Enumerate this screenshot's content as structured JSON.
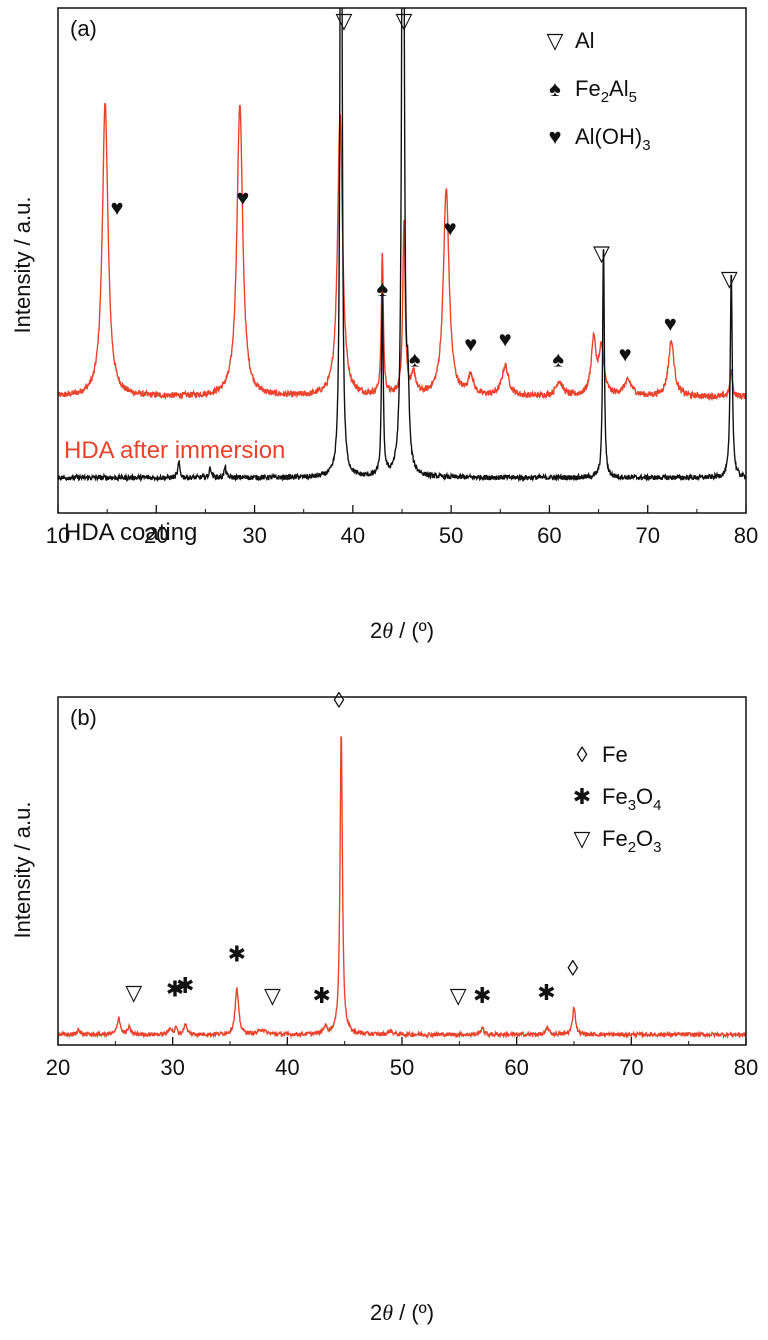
{
  "chart_data": [
    {
      "panel_label": "(a)",
      "type": "line",
      "xlabel_prefix": "2",
      "xlabel_symbol": "θ",
      "xlabel_suffix": " / (º)",
      "ylabel": "Intensity / a.u.",
      "xlim": [
        10,
        80
      ],
      "xticks": [
        10,
        20,
        30,
        40,
        50,
        60,
        70,
        80
      ],
      "ylim": [
        0,
        100
      ],
      "grid": false,
      "legend": {
        "position": "top-right",
        "items": [
          {
            "marker": "open-triangle-down",
            "symbol": "▽",
            "base": "Al",
            "subs": []
          },
          {
            "marker": "spade",
            "symbol": "♠",
            "base": "Fe2Al5",
            "parts": [
              [
                "Fe",
                ""
              ],
              [
                "2",
                "sub"
              ],
              [
                "Al",
                ""
              ],
              [
                "5",
                "sub"
              ]
            ]
          },
          {
            "marker": "heart",
            "symbol": "♥",
            "base": "Al(OH)3",
            "parts": [
              [
                "Al(OH)",
                ""
              ],
              [
                "3",
                "sub"
              ]
            ]
          }
        ]
      },
      "series": [
        {
          "name": "HDA after immersion",
          "color": "#e8432c",
          "baseline": 23,
          "noise": 0.6,
          "peaks": [
            {
              "x": 14.8,
              "y": 58,
              "w": 0.35
            },
            {
              "x": 28.5,
              "y": 58,
              "w": 0.35
            },
            {
              "x": 38.7,
              "y": 56,
              "w": 0.3
            },
            {
              "x": 43.0,
              "y": 28,
              "w": 0.12
            },
            {
              "x": 45.2,
              "y": 34,
              "w": 0.15
            },
            {
              "x": 46.2,
              "y": 4,
              "w": 0.25
            },
            {
              "x": 49.5,
              "y": 41,
              "w": 0.35
            },
            {
              "x": 52.0,
              "y": 4,
              "w": 0.3
            },
            {
              "x": 55.5,
              "y": 6,
              "w": 0.4
            },
            {
              "x": 61.0,
              "y": 3,
              "w": 0.4
            },
            {
              "x": 64.5,
              "y": 11,
              "w": 0.3
            },
            {
              "x": 65.3,
              "y": 9,
              "w": 0.3
            },
            {
              "x": 68.0,
              "y": 3,
              "w": 0.5
            },
            {
              "x": 72.4,
              "y": 11,
              "w": 0.35
            },
            {
              "x": 78.5,
              "y": 5,
              "w": 0.15
            }
          ]
        },
        {
          "name": "HDA coating",
          "color": "#111111",
          "baseline": 7,
          "noise": 0.5,
          "peaks": [
            {
              "x": 22.3,
              "y": 3,
              "w": 0.12
            },
            {
              "x": 25.5,
              "y": 2,
              "w": 0.12
            },
            {
              "x": 27.0,
              "y": 2,
              "w": 0.12
            },
            {
              "x": 38.8,
              "y": 200,
              "w": 0.1
            },
            {
              "x": 43.0,
              "y": 36,
              "w": 0.1
            },
            {
              "x": 45.1,
              "y": 200,
              "w": 0.12
            },
            {
              "x": 45.6,
              "y": 14,
              "w": 0.15
            },
            {
              "x": 65.5,
              "y": 47,
              "w": 0.1
            },
            {
              "x": 78.5,
              "y": 41,
              "w": 0.12
            }
          ]
        }
      ],
      "annotations": [
        {
          "marker": "open-triangle-down",
          "symbol": "▽",
          "x": 39.1,
          "y": 96
        },
        {
          "marker": "open-triangle-down",
          "symbol": "▽",
          "x": 45.2,
          "y": 96
        },
        {
          "marker": "open-triangle-down",
          "symbol": "▽",
          "x": 65.3,
          "y": 50
        },
        {
          "marker": "open-triangle-down",
          "symbol": "▽",
          "x": 78.3,
          "y": 45
        },
        {
          "marker": "heart",
          "symbol": "♥",
          "x": 16.0,
          "y": 59
        },
        {
          "marker": "heart",
          "symbol": "♥",
          "x": 28.8,
          "y": 61
        },
        {
          "marker": "heart",
          "symbol": "♥",
          "x": 49.9,
          "y": 55
        },
        {
          "marker": "heart",
          "symbol": "♥",
          "x": 52.0,
          "y": 32
        },
        {
          "marker": "heart",
          "symbol": "♥",
          "x": 55.5,
          "y": 33
        },
        {
          "marker": "heart",
          "symbol": "♥",
          "x": 67.7,
          "y": 30
        },
        {
          "marker": "heart",
          "symbol": "♥",
          "x": 72.3,
          "y": 36
        },
        {
          "marker": "spade",
          "symbol": "♠",
          "x": 43.0,
          "y": 43
        },
        {
          "marker": "spade",
          "symbol": "♠",
          "x": 46.3,
          "y": 29
        },
        {
          "marker": "spade",
          "symbol": "♠",
          "x": 60.9,
          "y": 29
        }
      ]
    },
    {
      "panel_label": "(b)",
      "type": "line",
      "xlabel_prefix": "2",
      "xlabel_symbol": "θ",
      "xlabel_suffix": " / (º)",
      "ylabel": "Intensity / a.u.",
      "xlim": [
        20,
        80
      ],
      "xticks": [
        20,
        30,
        40,
        50,
        60,
        70,
        80
      ],
      "ylim": [
        0,
        100
      ],
      "grid": false,
      "legend": {
        "position": "top-right",
        "items": [
          {
            "marker": "open-diamond",
            "symbol": "◊",
            "base": "Fe",
            "parts": [
              [
                "Fe",
                ""
              ]
            ]
          },
          {
            "marker": "asterisk",
            "symbol": "✱",
            "base": "Fe3O4",
            "parts": [
              [
                "Fe",
                ""
              ],
              [
                "3",
                "sub"
              ],
              [
                "O",
                ""
              ],
              [
                "4",
                "sub"
              ]
            ]
          },
          {
            "marker": "open-triangle-down",
            "symbol": "▽",
            "base": "Fe2O3",
            "parts": [
              [
                "Fe",
                ""
              ],
              [
                "2",
                "sub"
              ],
              [
                "O",
                ""
              ],
              [
                "3",
                "sub"
              ]
            ]
          }
        ]
      },
      "series": [
        {
          "name": "",
          "color": "#e8432c",
          "baseline": 3,
          "noise": 0.6,
          "peaks": [
            {
              "x": 21.8,
              "y": 2,
              "w": 0.1
            },
            {
              "x": 25.3,
              "y": 5,
              "w": 0.15
            },
            {
              "x": 26.2,
              "y": 2,
              "w": 0.15
            },
            {
              "x": 29.8,
              "y": 2,
              "w": 0.15
            },
            {
              "x": 30.3,
              "y": 2,
              "w": 0.1
            },
            {
              "x": 31.1,
              "y": 3,
              "w": 0.15
            },
            {
              "x": 35.6,
              "y": 13,
              "w": 0.18
            },
            {
              "x": 37.8,
              "y": 1.5,
              "w": 0.3
            },
            {
              "x": 43.3,
              "y": 2,
              "w": 0.2
            },
            {
              "x": 44.7,
              "y": 88,
              "w": 0.12
            },
            {
              "x": 49.0,
              "y": 1,
              "w": 0.2
            },
            {
              "x": 57.0,
              "y": 2,
              "w": 0.15
            },
            {
              "x": 62.7,
              "y": 2,
              "w": 0.15
            },
            {
              "x": 65.0,
              "y": 8,
              "w": 0.15
            }
          ]
        }
      ],
      "annotations": [
        {
          "marker": "open-diamond",
          "symbol": "◊",
          "x": 44.5,
          "y": 97
        },
        {
          "marker": "open-diamond",
          "symbol": "◊",
          "x": 64.9,
          "y": 20
        },
        {
          "marker": "asterisk",
          "symbol": "✱",
          "x": 35.6,
          "y": 24
        },
        {
          "marker": "asterisk",
          "symbol": "✱",
          "x": 30.2,
          "y": 14
        },
        {
          "marker": "asterisk",
          "symbol": "✱",
          "x": 31.1,
          "y": 15
        },
        {
          "marker": "asterisk",
          "symbol": "✱",
          "x": 43.0,
          "y": 12
        },
        {
          "marker": "asterisk",
          "symbol": "✱",
          "x": 57.0,
          "y": 12
        },
        {
          "marker": "asterisk",
          "symbol": "✱",
          "x": 62.6,
          "y": 13
        },
        {
          "marker": "open-triangle-down",
          "symbol": "▽",
          "x": 26.6,
          "y": 13
        },
        {
          "marker": "open-triangle-down",
          "symbol": "▽",
          "x": 38.7,
          "y": 12
        },
        {
          "marker": "open-triangle-down",
          "symbol": "▽",
          "x": 54.9,
          "y": 12
        }
      ]
    }
  ]
}
